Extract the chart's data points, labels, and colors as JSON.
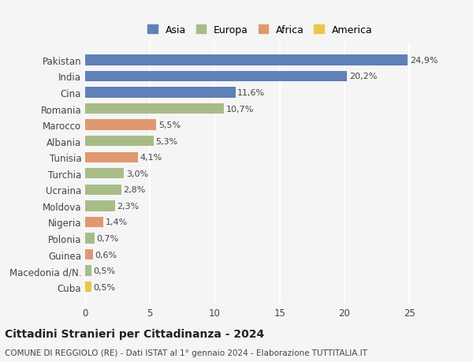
{
  "categories": [
    "Pakistan",
    "India",
    "Cina",
    "Romania",
    "Marocco",
    "Albania",
    "Tunisia",
    "Turchia",
    "Ucraina",
    "Moldova",
    "Nigeria",
    "Polonia",
    "Guinea",
    "Macedonia d/N.",
    "Cuba"
  ],
  "values": [
    24.9,
    20.2,
    11.6,
    10.7,
    5.5,
    5.3,
    4.1,
    3.0,
    2.8,
    2.3,
    1.4,
    0.7,
    0.6,
    0.5,
    0.5
  ],
  "labels": [
    "24,9%",
    "20,2%",
    "11,6%",
    "10,7%",
    "5,5%",
    "5,3%",
    "4,1%",
    "3,0%",
    "2,8%",
    "2,3%",
    "1,4%",
    "0,7%",
    "0,6%",
    "0,5%",
    "0,5%"
  ],
  "colors": [
    "#6080b8",
    "#6080b8",
    "#6080b8",
    "#a8bc88",
    "#e09870",
    "#a8bc88",
    "#e09870",
    "#a8bc88",
    "#a8bc88",
    "#a8bc88",
    "#e09870",
    "#a8bc88",
    "#e09870",
    "#a8bc88",
    "#e8c848"
  ],
  "legend_labels": [
    "Asia",
    "Europa",
    "Africa",
    "America"
  ],
  "legend_colors": [
    "#6080b8",
    "#a8bc88",
    "#e09870",
    "#e8c848"
  ],
  "xlim": [
    0,
    27
  ],
  "xticks": [
    0,
    5,
    10,
    15,
    20,
    25
  ],
  "title": "Cittadini Stranieri per Cittadinanza - 2024",
  "subtitle": "COMUNE DI REGGIOLO (RE) - Dati ISTAT al 1° gennaio 2024 - Elaborazione TUTTITALIA.IT",
  "background_color": "#f5f5f5",
  "grid_color": "#ffffff",
  "bar_height": 0.65
}
